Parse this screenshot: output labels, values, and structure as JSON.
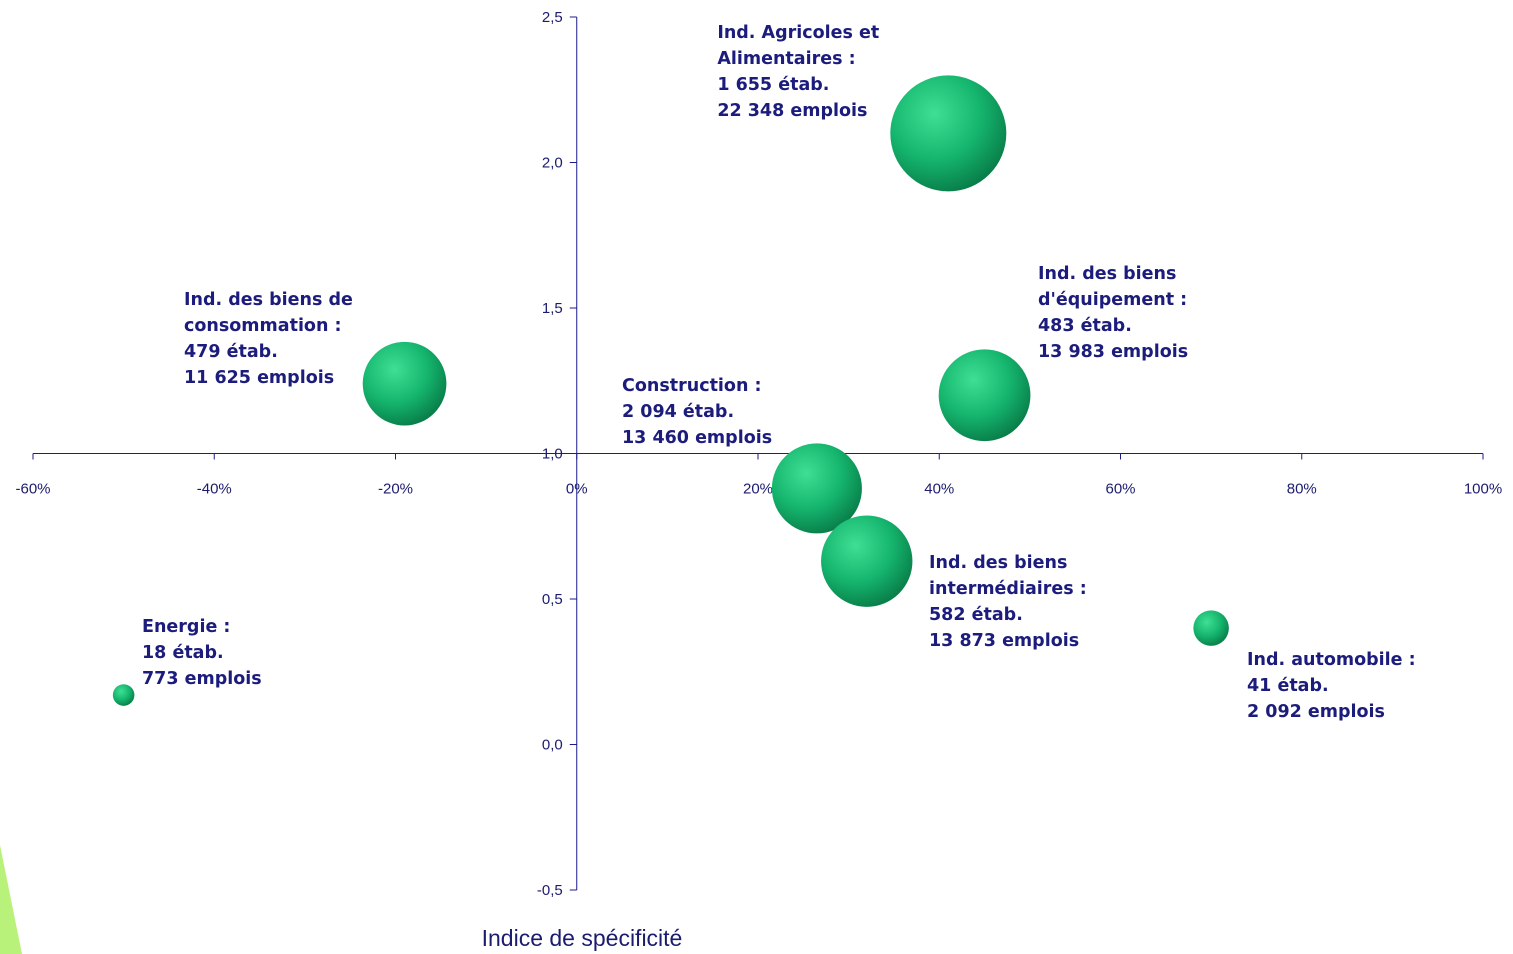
{
  "colors": {
    "axis": "#1c1c8a",
    "label": "#1c1c7c",
    "bubble_light": "#3ddc8e",
    "bubble_dark": "#0a8a50",
    "accent": "#b8f27a"
  },
  "chart_data": {
    "type": "bubble",
    "title": "",
    "xlabel": "",
    "ylabel": "Indice de spécificité",
    "xlim": [
      -0.6,
      1.0
    ],
    "ylim": [
      -0.5,
      2.5
    ],
    "x_ticks": [
      {
        "value": -0.6,
        "label": "-60%"
      },
      {
        "value": -0.4,
        "label": "-40%"
      },
      {
        "value": -0.2,
        "label": "-20%"
      },
      {
        "value": 0.0,
        "label": "0%"
      },
      {
        "value": 0.2,
        "label": "20%"
      },
      {
        "value": 0.4,
        "label": "40%"
      },
      {
        "value": 0.6,
        "label": "60%"
      },
      {
        "value": 0.8,
        "label": "80%"
      },
      {
        "value": 1.0,
        "label": "100%"
      }
    ],
    "y_ticks": [
      {
        "value": 2.5,
        "label": "2,5"
      },
      {
        "value": 2.0,
        "label": "2,0"
      },
      {
        "value": 1.5,
        "label": "1,5"
      },
      {
        "value": 1.0,
        "label": "1,0"
      },
      {
        "value": 0.5,
        "label": "0,5"
      },
      {
        "value": 0.0,
        "label": "0,0"
      },
      {
        "value": -0.5,
        "label": "-0,5"
      }
    ],
    "axis_crossing": {
      "x": 0.0,
      "y": 1.0
    },
    "points": [
      {
        "x": 0.41,
        "y": 2.1,
        "size": 22348,
        "label": [
          "Ind. Agricoles et",
          "Alimentaires :",
          "1 655 étab.",
          "22 348 emplois"
        ],
        "label_pos": "top-left"
      },
      {
        "x": -0.19,
        "y": 1.24,
        "size": 11625,
        "label": [
          "Ind. des biens de",
          "consommation :",
          "479 étab.",
          "11 625 emplois"
        ],
        "label_pos": "top-left"
      },
      {
        "x": 0.45,
        "y": 1.2,
        "size": 13983,
        "label": [
          "Ind. des biens",
          "d'équipement :",
          "483 étab.",
          "13 983 emplois"
        ],
        "label_pos": "top-right"
      },
      {
        "x": 0.265,
        "y": 0.88,
        "size": 13460,
        "label": [
          "Construction :",
          "2 094 étab.",
          "13 460 emplois"
        ],
        "label_pos": "top-left"
      },
      {
        "x": 0.32,
        "y": 0.63,
        "size": 13873,
        "label": [
          "Ind. des biens",
          "intermédiaires :",
          "582 étab.",
          "13 873 emplois"
        ],
        "label_pos": "right"
      },
      {
        "x": 0.7,
        "y": 0.4,
        "size": 2092,
        "label": [
          "Ind. automobile :",
          "41 étab.",
          "2 092 emplois"
        ],
        "label_pos": "bottom-right"
      },
      {
        "x": -0.5,
        "y": 0.17,
        "size": 773,
        "label": [
          "Energie :",
          "18 étab.",
          "773 emplois"
        ],
        "label_pos": "top-right"
      }
    ]
  }
}
